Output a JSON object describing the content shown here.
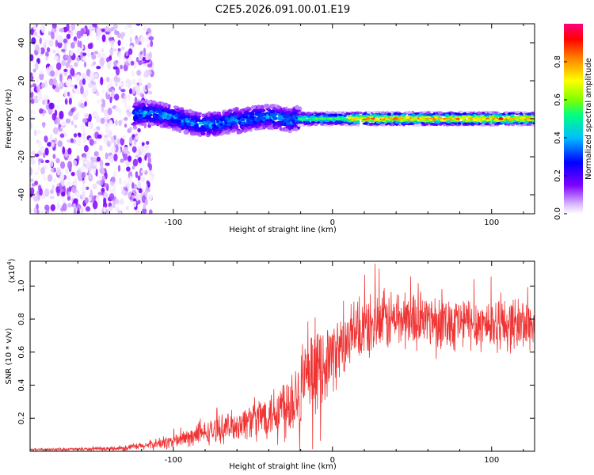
{
  "figure": {
    "title": "C2E5.2026.091.00.01.E19"
  },
  "chart_data": [
    {
      "type": "heatmap",
      "panel": "top",
      "xlabel": "Height of straight line (km)",
      "ylabel": "Frequency (Hz)",
      "xlim": [
        -190,
        127
      ],
      "ylim": [
        -50,
        50
      ],
      "xticks": [
        -100,
        0,
        100
      ],
      "yticks": [
        -40,
        -20,
        0,
        20,
        40
      ],
      "colorbar": {
        "label": "Normalized spectral amplitude",
        "range": [
          0,
          1
        ],
        "ticks": [
          0.0,
          0.2,
          0.4,
          0.6,
          0.8
        ],
        "colormap": [
          "#ffffff",
          "#d9b8ff",
          "#8000ff",
          "#0000ff",
          "#00bfff",
          "#00ff80",
          "#80ff00",
          "#ffff00",
          "#ff8000",
          "#ff0000",
          "#ff0080"
        ]
      },
      "grid": false,
      "features": [
        {
          "region": "x < -115 km",
          "description": "diffuse low-amplitude scatter across all frequencies"
        },
        {
          "region": "-115 to -20 km",
          "description": "band near 0 Hz, amplitude ~0.2-0.4, wobbling between -10 and +10 Hz"
        },
        {
          "region": "x > -20 km",
          "description": "narrow band centered at 0 Hz, peak amplitude ~0.6-0.9"
        }
      ]
    },
    {
      "type": "line",
      "panel": "bottom",
      "xlabel": "Height of straight line (km)",
      "ylabel": "SNR (10 * v/v)",
      "yscale_label": "(x10",
      "yscale_exp": "4",
      "yscale_close": ")",
      "xlim": [
        -190,
        127
      ],
      "ylim": [
        0,
        1.15
      ],
      "xticks": [
        -100,
        0,
        100
      ],
      "yticks": [
        0.2,
        0.4,
        0.6,
        0.8,
        1.0
      ],
      "color": "#ef3434",
      "series": [
        {
          "name": "SNR",
          "envelope_x": [
            -190,
            -140,
            -120,
            -100,
            -80,
            -60,
            -40,
            -30,
            -20,
            -10,
            0,
            10,
            20,
            30,
            40,
            60,
            80,
            100,
            127
          ],
          "envelope_mean": [
            0.01,
            0.015,
            0.03,
            0.06,
            0.11,
            0.16,
            0.23,
            0.28,
            0.38,
            0.48,
            0.58,
            0.66,
            0.74,
            0.78,
            0.8,
            0.8,
            0.78,
            0.77,
            0.77
          ],
          "envelope_spread": [
            0.005,
            0.01,
            0.02,
            0.04,
            0.06,
            0.08,
            0.12,
            0.18,
            0.22,
            0.2,
            0.18,
            0.16,
            0.16,
            0.16,
            0.16,
            0.14,
            0.14,
            0.14,
            0.14
          ]
        }
      ]
    }
  ]
}
